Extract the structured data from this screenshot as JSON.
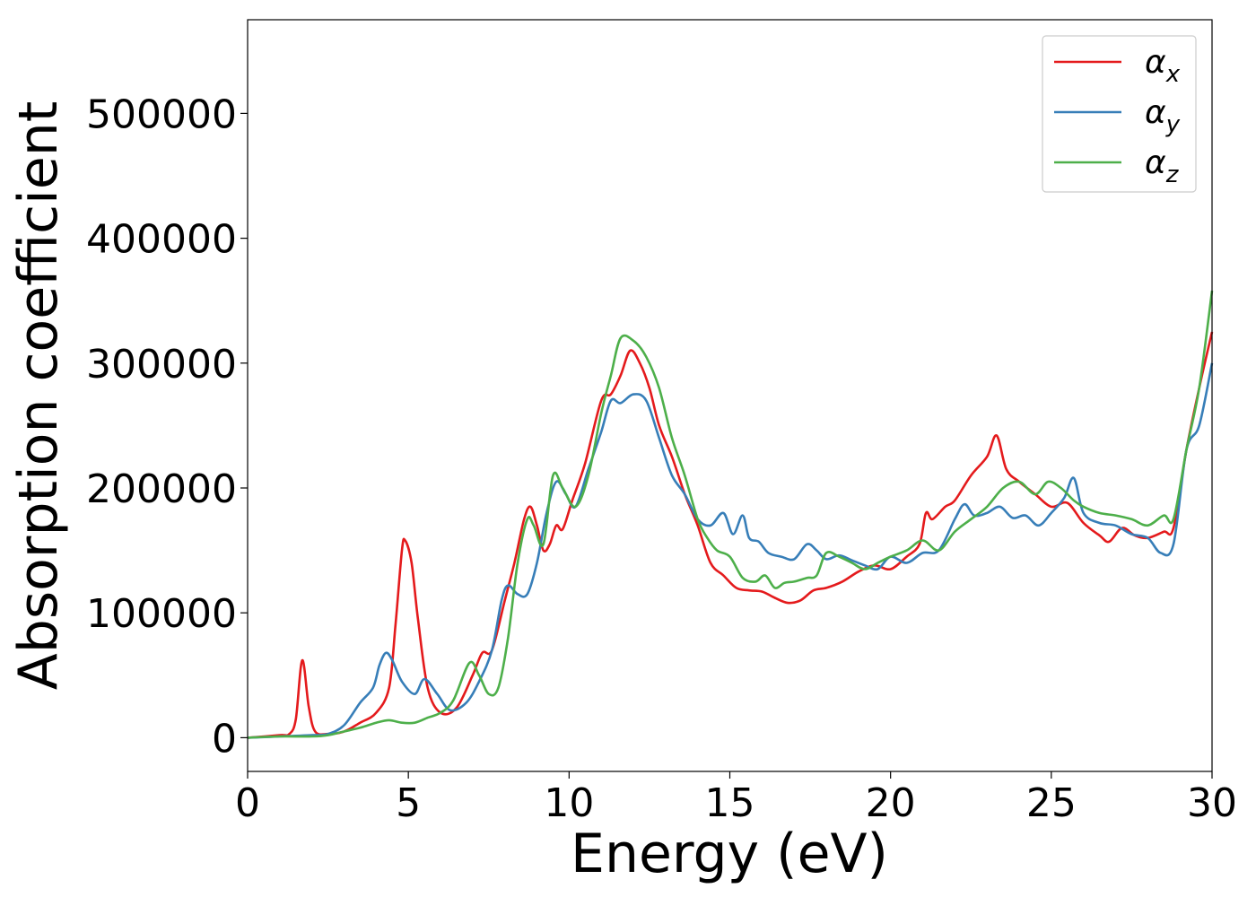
{
  "chart_data": {
    "type": "line",
    "title": "",
    "xlabel": "Energy (eV)",
    "ylabel": "Absorption coefficient",
    "xlim": [
      0,
      30
    ],
    "ylim": [
      -27000,
      575000
    ],
    "xticks": [
      0,
      5,
      10,
      15,
      20,
      25,
      30
    ],
    "xtick_labels": [
      "0",
      "5",
      "10",
      "15",
      "20",
      "25",
      "30"
    ],
    "yticks": [
      0,
      100000,
      200000,
      300000,
      400000,
      500000
    ],
    "ytick_labels": [
      "0",
      "100000",
      "200000",
      "300000",
      "400000",
      "500000"
    ],
    "grid": false,
    "legend_position": "top-right",
    "series": [
      {
        "name": "αx",
        "label_base": "α",
        "label_sub": "x",
        "color": "#e41a1c",
        "x": [
          0,
          1,
          1.3,
          1.5,
          1.7,
          1.9,
          2.1,
          2.5,
          3.0,
          3.5,
          4.0,
          4.4,
          4.6,
          4.8,
          4.9,
          5.1,
          5.3,
          5.6,
          6.0,
          6.5,
          7.0,
          7.3,
          7.6,
          8.0,
          8.3,
          8.6,
          8.8,
          9.0,
          9.2,
          9.4,
          9.6,
          9.8,
          10.1,
          10.5,
          11.0,
          11.3,
          11.6,
          11.9,
          12.2,
          12.5,
          12.8,
          13.2,
          13.6,
          14.0,
          14.4,
          14.8,
          15.2,
          15.6,
          16.0,
          16.4,
          16.8,
          17.2,
          17.6,
          18.0,
          18.5,
          19.0,
          19.5,
          20.0,
          20.5,
          20.9,
          21.1,
          21.3,
          21.7,
          22.0,
          22.5,
          23.0,
          23.3,
          23.6,
          24.0,
          24.5,
          25.0,
          25.5,
          26.0,
          26.5,
          26.8,
          27.2,
          27.6,
          28.0,
          28.5,
          28.8,
          29.2,
          29.6,
          30.0
        ],
        "y": [
          0,
          2000,
          3000,
          15000,
          62000,
          25000,
          5000,
          3000,
          5000,
          12000,
          20000,
          40000,
          90000,
          150000,
          158000,
          140000,
          95000,
          40000,
          20000,
          24000,
          50000,
          68000,
          70000,
          110000,
          140000,
          175000,
          185000,
          170000,
          150000,
          155000,
          170000,
          167000,
          190000,
          220000,
          270000,
          275000,
          290000,
          310000,
          300000,
          280000,
          250000,
          225000,
          195000,
          170000,
          140000,
          130000,
          120000,
          118000,
          117000,
          112000,
          108000,
          110000,
          118000,
          120000,
          125000,
          133000,
          138000,
          135000,
          145000,
          155000,
          180000,
          175000,
          185000,
          190000,
          210000,
          225000,
          242000,
          215000,
          205000,
          195000,
          185000,
          188000,
          172000,
          162000,
          157000,
          168000,
          162000,
          160000,
          165000,
          168000,
          230000,
          280000,
          325000
        ]
      },
      {
        "name": "αy",
        "label_base": "α",
        "label_sub": "y",
        "color": "#377eb8",
        "x": [
          0,
          1,
          2,
          2.5,
          3.0,
          3.5,
          3.9,
          4.1,
          4.3,
          4.5,
          4.8,
          5.2,
          5.5,
          5.9,
          6.3,
          6.8,
          7.2,
          7.6,
          7.9,
          8.1,
          8.4,
          8.7,
          9.0,
          9.3,
          9.6,
          9.9,
          10.2,
          10.6,
          11.0,
          11.3,
          11.6,
          12.0,
          12.4,
          12.8,
          13.2,
          13.6,
          14.0,
          14.4,
          14.8,
          15.1,
          15.4,
          15.6,
          15.9,
          16.2,
          16.6,
          17.0,
          17.4,
          17.7,
          18.0,
          18.4,
          18.8,
          19.2,
          19.6,
          20.0,
          20.5,
          21.0,
          21.5,
          22.0,
          22.3,
          22.6,
          23.0,
          23.4,
          23.8,
          24.2,
          24.6,
          25.0,
          25.4,
          25.7,
          26.0,
          26.5,
          27.0,
          27.5,
          28.0,
          28.4,
          28.8,
          29.2,
          29.6,
          30.0
        ],
        "y": [
          0,
          1000,
          2000,
          3000,
          10000,
          28000,
          40000,
          58000,
          68000,
          62000,
          45000,
          35000,
          47000,
          35000,
          22000,
          28000,
          45000,
          70000,
          110000,
          122000,
          115000,
          115000,
          140000,
          180000,
          205000,
          195000,
          185000,
          215000,
          245000,
          270000,
          268000,
          275000,
          270000,
          240000,
          210000,
          195000,
          175000,
          170000,
          180000,
          163000,
          178000,
          160000,
          157000,
          148000,
          145000,
          143000,
          155000,
          150000,
          143000,
          146000,
          142000,
          138000,
          135000,
          145000,
          140000,
          148000,
          150000,
          175000,
          187000,
          178000,
          180000,
          185000,
          176000,
          178000,
          170000,
          180000,
          192000,
          208000,
          180000,
          172000,
          170000,
          163000,
          160000,
          148000,
          155000,
          230000,
          250000,
          300000
        ]
      },
      {
        "name": "αz",
        "label_base": "α",
        "label_sub": "z",
        "color": "#4daf4a",
        "x": [
          0,
          1,
          2,
          2.5,
          3.0,
          3.5,
          4.0,
          4.4,
          4.8,
          5.2,
          5.6,
          6.0,
          6.4,
          6.9,
          7.2,
          7.5,
          7.8,
          8.1,
          8.4,
          8.7,
          8.9,
          9.2,
          9.5,
          9.8,
          10.2,
          10.6,
          11.0,
          11.3,
          11.6,
          12.0,
          12.4,
          12.8,
          13.2,
          13.6,
          14.0,
          14.3,
          14.6,
          15.0,
          15.4,
          15.8,
          16.1,
          16.4,
          16.7,
          17.0,
          17.4,
          17.7,
          18.0,
          18.4,
          18.8,
          19.2,
          19.6,
          20.0,
          20.5,
          21.0,
          21.5,
          22.0,
          22.5,
          23.0,
          23.5,
          24.0,
          24.5,
          24.9,
          25.3,
          25.7,
          26.0,
          26.5,
          27.0,
          27.5,
          28.0,
          28.5,
          28.8,
          29.2,
          29.6,
          30.0
        ],
        "y": [
          0,
          1000,
          1000,
          2000,
          5000,
          8000,
          12000,
          14000,
          12000,
          12000,
          16000,
          20000,
          30000,
          60000,
          50000,
          35000,
          40000,
          80000,
          140000,
          175000,
          170000,
          155000,
          210000,
          200000,
          185000,
          210000,
          260000,
          290000,
          320000,
          318000,
          305000,
          280000,
          240000,
          210000,
          175000,
          160000,
          150000,
          145000,
          128000,
          125000,
          130000,
          120000,
          124000,
          125000,
          128000,
          130000,
          148000,
          145000,
          140000,
          135000,
          140000,
          145000,
          150000,
          158000,
          150000,
          165000,
          175000,
          185000,
          200000,
          205000,
          195000,
          205000,
          200000,
          190000,
          185000,
          180000,
          178000,
          175000,
          170000,
          178000,
          175000,
          230000,
          280000,
          358000
        ]
      }
    ]
  }
}
